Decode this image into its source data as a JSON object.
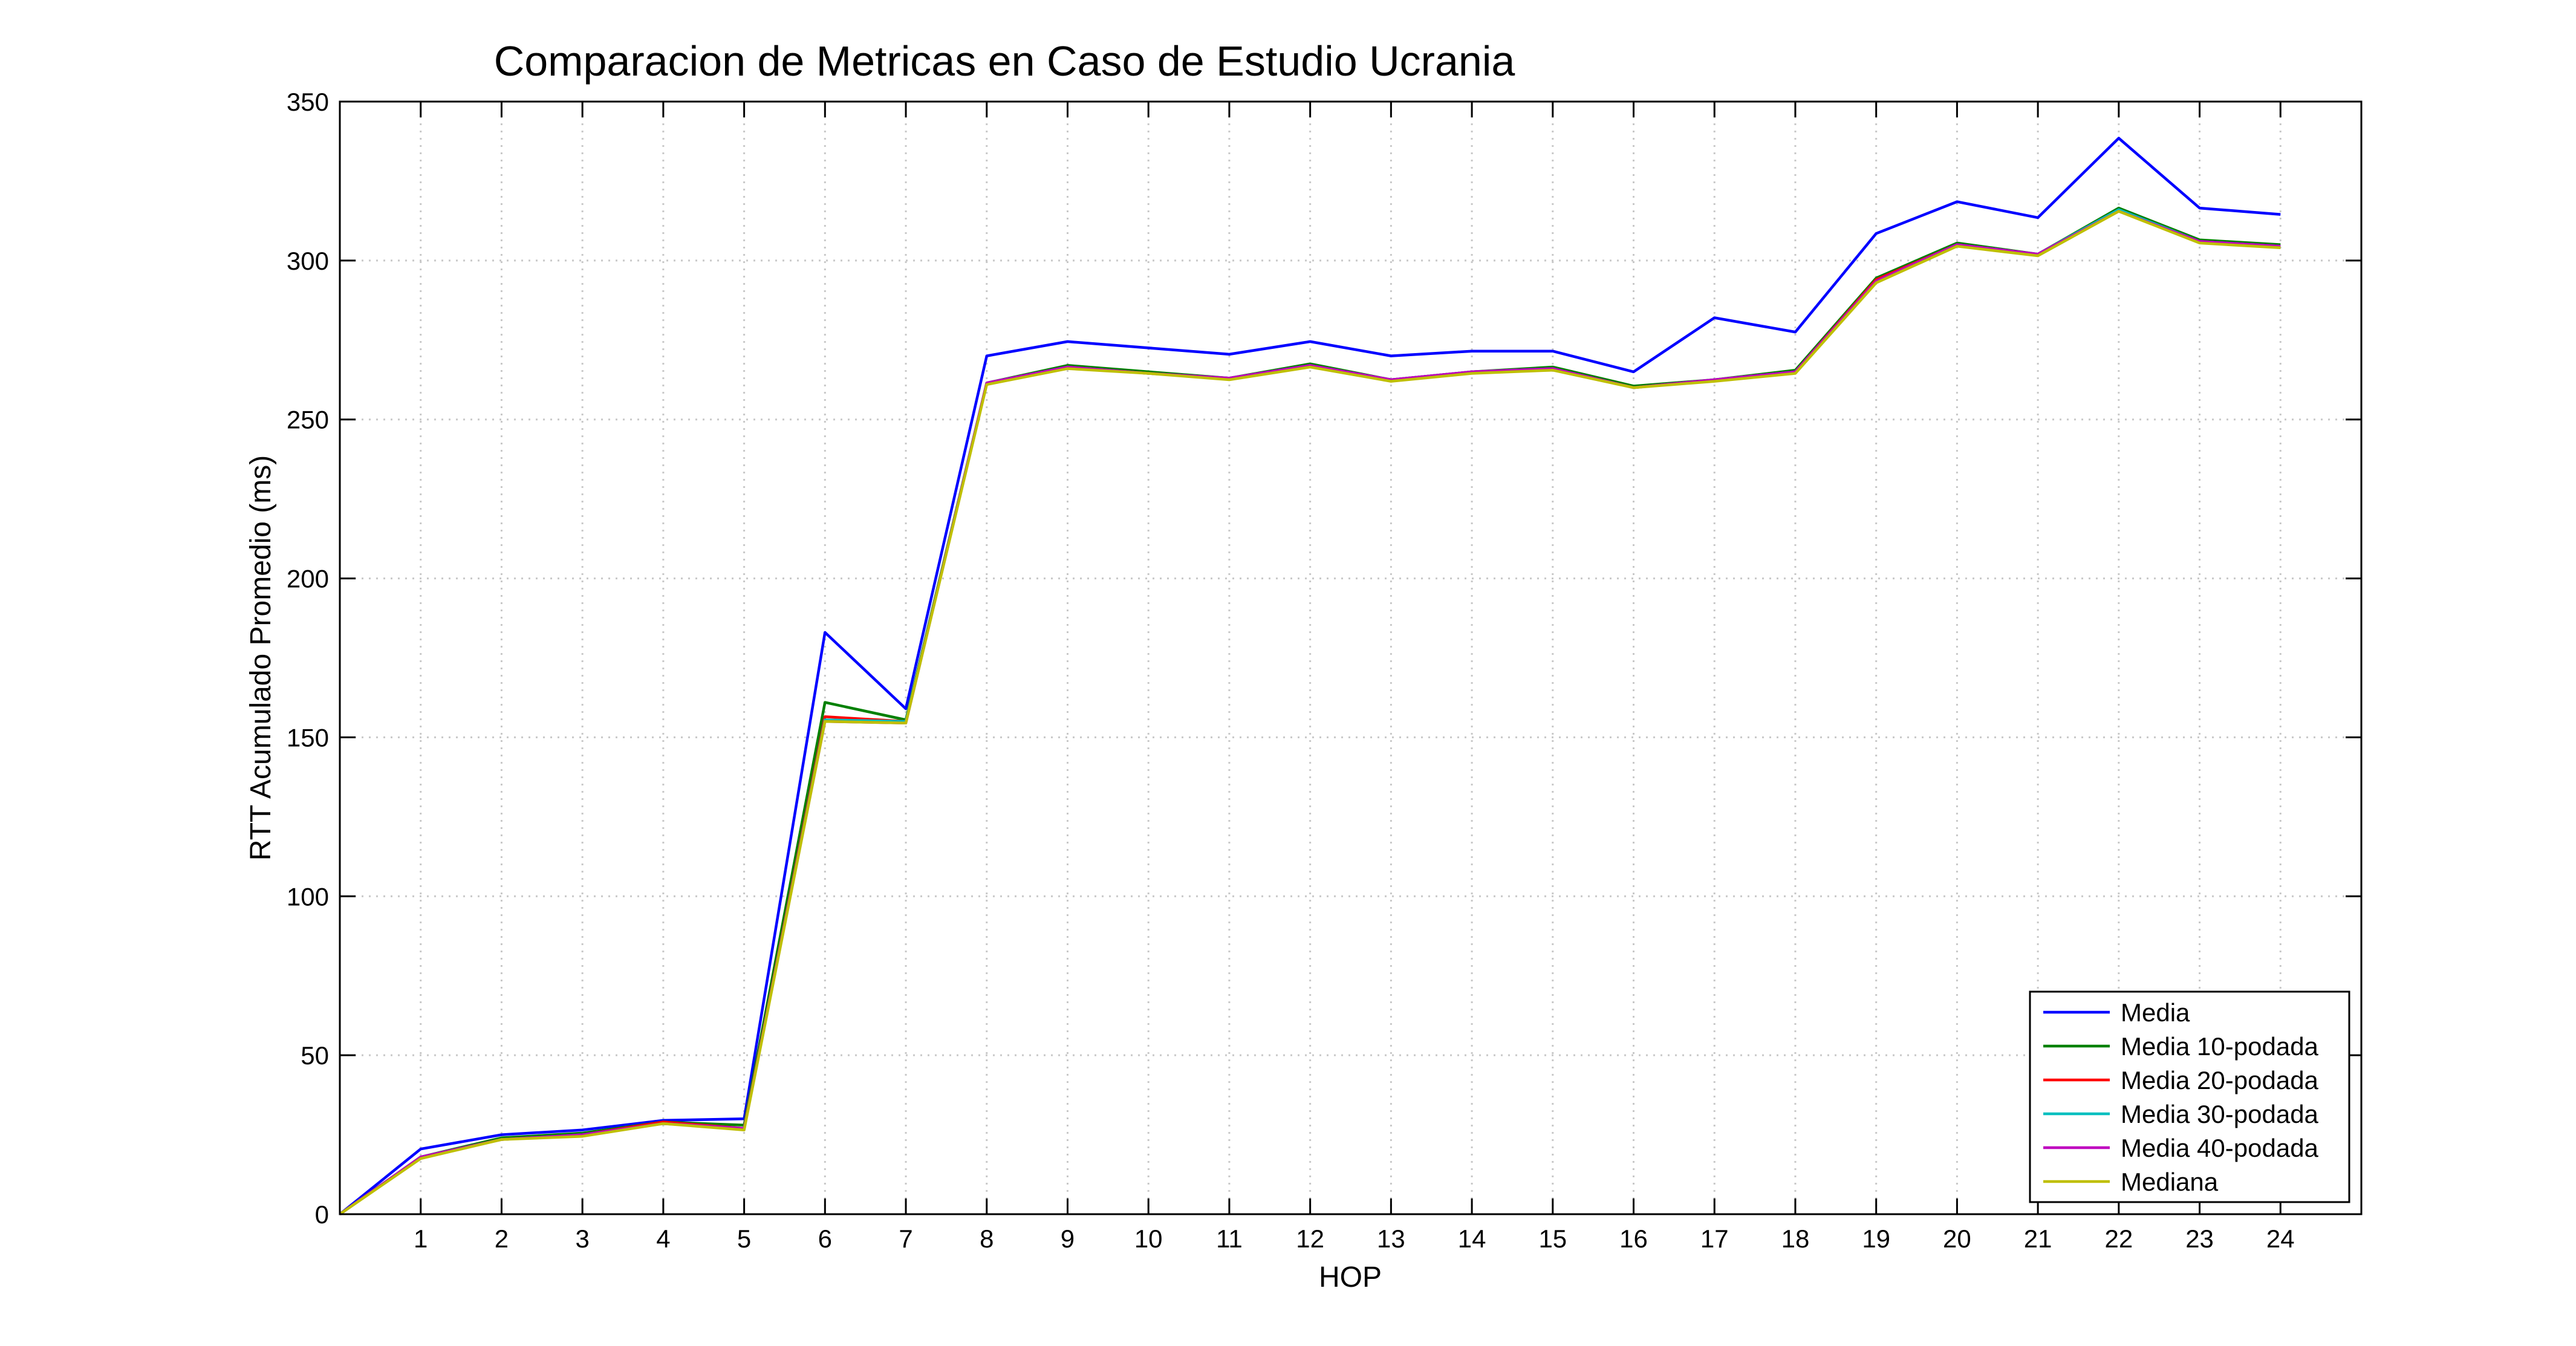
{
  "chart_data": {
    "type": "line",
    "title": "Comparacion de Metricas en Caso de Estudio Ucrania",
    "xlabel": "HOP",
    "ylabel": "RTT Acumulado Promedio (ms)",
    "xlim": [
      0,
      25
    ],
    "ylim": [
      0,
      350
    ],
    "xticks": [
      1,
      2,
      3,
      4,
      5,
      6,
      7,
      8,
      9,
      10,
      11,
      12,
      13,
      14,
      15,
      16,
      17,
      18,
      19,
      20,
      21,
      22,
      23,
      24
    ],
    "yticks": [
      0,
      50,
      100,
      150,
      200,
      250,
      300,
      350
    ],
    "grid": true,
    "legend_position": "bottom-right",
    "x": [
      0,
      1,
      2,
      3,
      4,
      5,
      6,
      7,
      8,
      9,
      10,
      11,
      12,
      13,
      14,
      15,
      16,
      17,
      18,
      19,
      20,
      21,
      22,
      23,
      24
    ],
    "series": [
      {
        "name": "Media",
        "color": "#0000ff",
        "values": [
          0,
          20.5,
          25,
          26.5,
          29.5,
          30,
          183,
          159,
          270,
          274.5,
          272.5,
          270.5,
          274.5,
          270,
          271.5,
          271.5,
          265,
          282,
          277.5,
          308.5,
          318.5,
          313.5,
          338.5,
          316.5,
          314.5
        ]
      },
      {
        "name": "Media 10-podada",
        "color": "#008000",
        "values": [
          0,
          18,
          24,
          25.5,
          29,
          28,
          161,
          155.5,
          261.5,
          267,
          265,
          263,
          267.5,
          262.5,
          265,
          266.5,
          260.5,
          262.5,
          265.5,
          294.5,
          305.5,
          302,
          316.5,
          306.5,
          305
        ]
      },
      {
        "name": "Media 20-podada",
        "color": "#ff0000",
        "values": [
          0,
          18,
          23.5,
          25,
          29,
          27,
          156.5,
          155,
          261.5,
          266.5,
          264.5,
          263,
          267,
          262.5,
          265,
          266,
          260,
          262.5,
          265,
          294,
          305,
          302,
          316,
          306,
          304.5
        ]
      },
      {
        "name": "Media 30-podada",
        "color": "#00bfbf",
        "values": [
          0,
          18,
          23.5,
          25,
          28.5,
          27,
          155.5,
          155,
          261.5,
          266.5,
          264.5,
          263,
          267,
          262.5,
          265,
          266,
          260,
          262.5,
          265,
          293.5,
          305,
          302,
          316,
          306,
          304.5
        ]
      },
      {
        "name": "Media 40-podada",
        "color": "#bf00bf",
        "values": [
          0,
          18,
          23.5,
          25,
          28.5,
          27,
          155,
          154.5,
          261.5,
          266.5,
          264.5,
          263,
          267,
          262.5,
          265,
          266,
          260,
          262.5,
          265,
          293.5,
          305,
          302,
          315.5,
          306,
          304.5
        ]
      },
      {
        "name": "Mediana",
        "color": "#bfbf00",
        "values": [
          0,
          17.5,
          23.5,
          24.5,
          28.5,
          26.5,
          155,
          154.5,
          261,
          266,
          264.5,
          262.5,
          266.5,
          262,
          264.5,
          265.5,
          260,
          262,
          264.5,
          293,
          304.5,
          301.5,
          315.5,
          305.5,
          304
        ]
      }
    ]
  }
}
